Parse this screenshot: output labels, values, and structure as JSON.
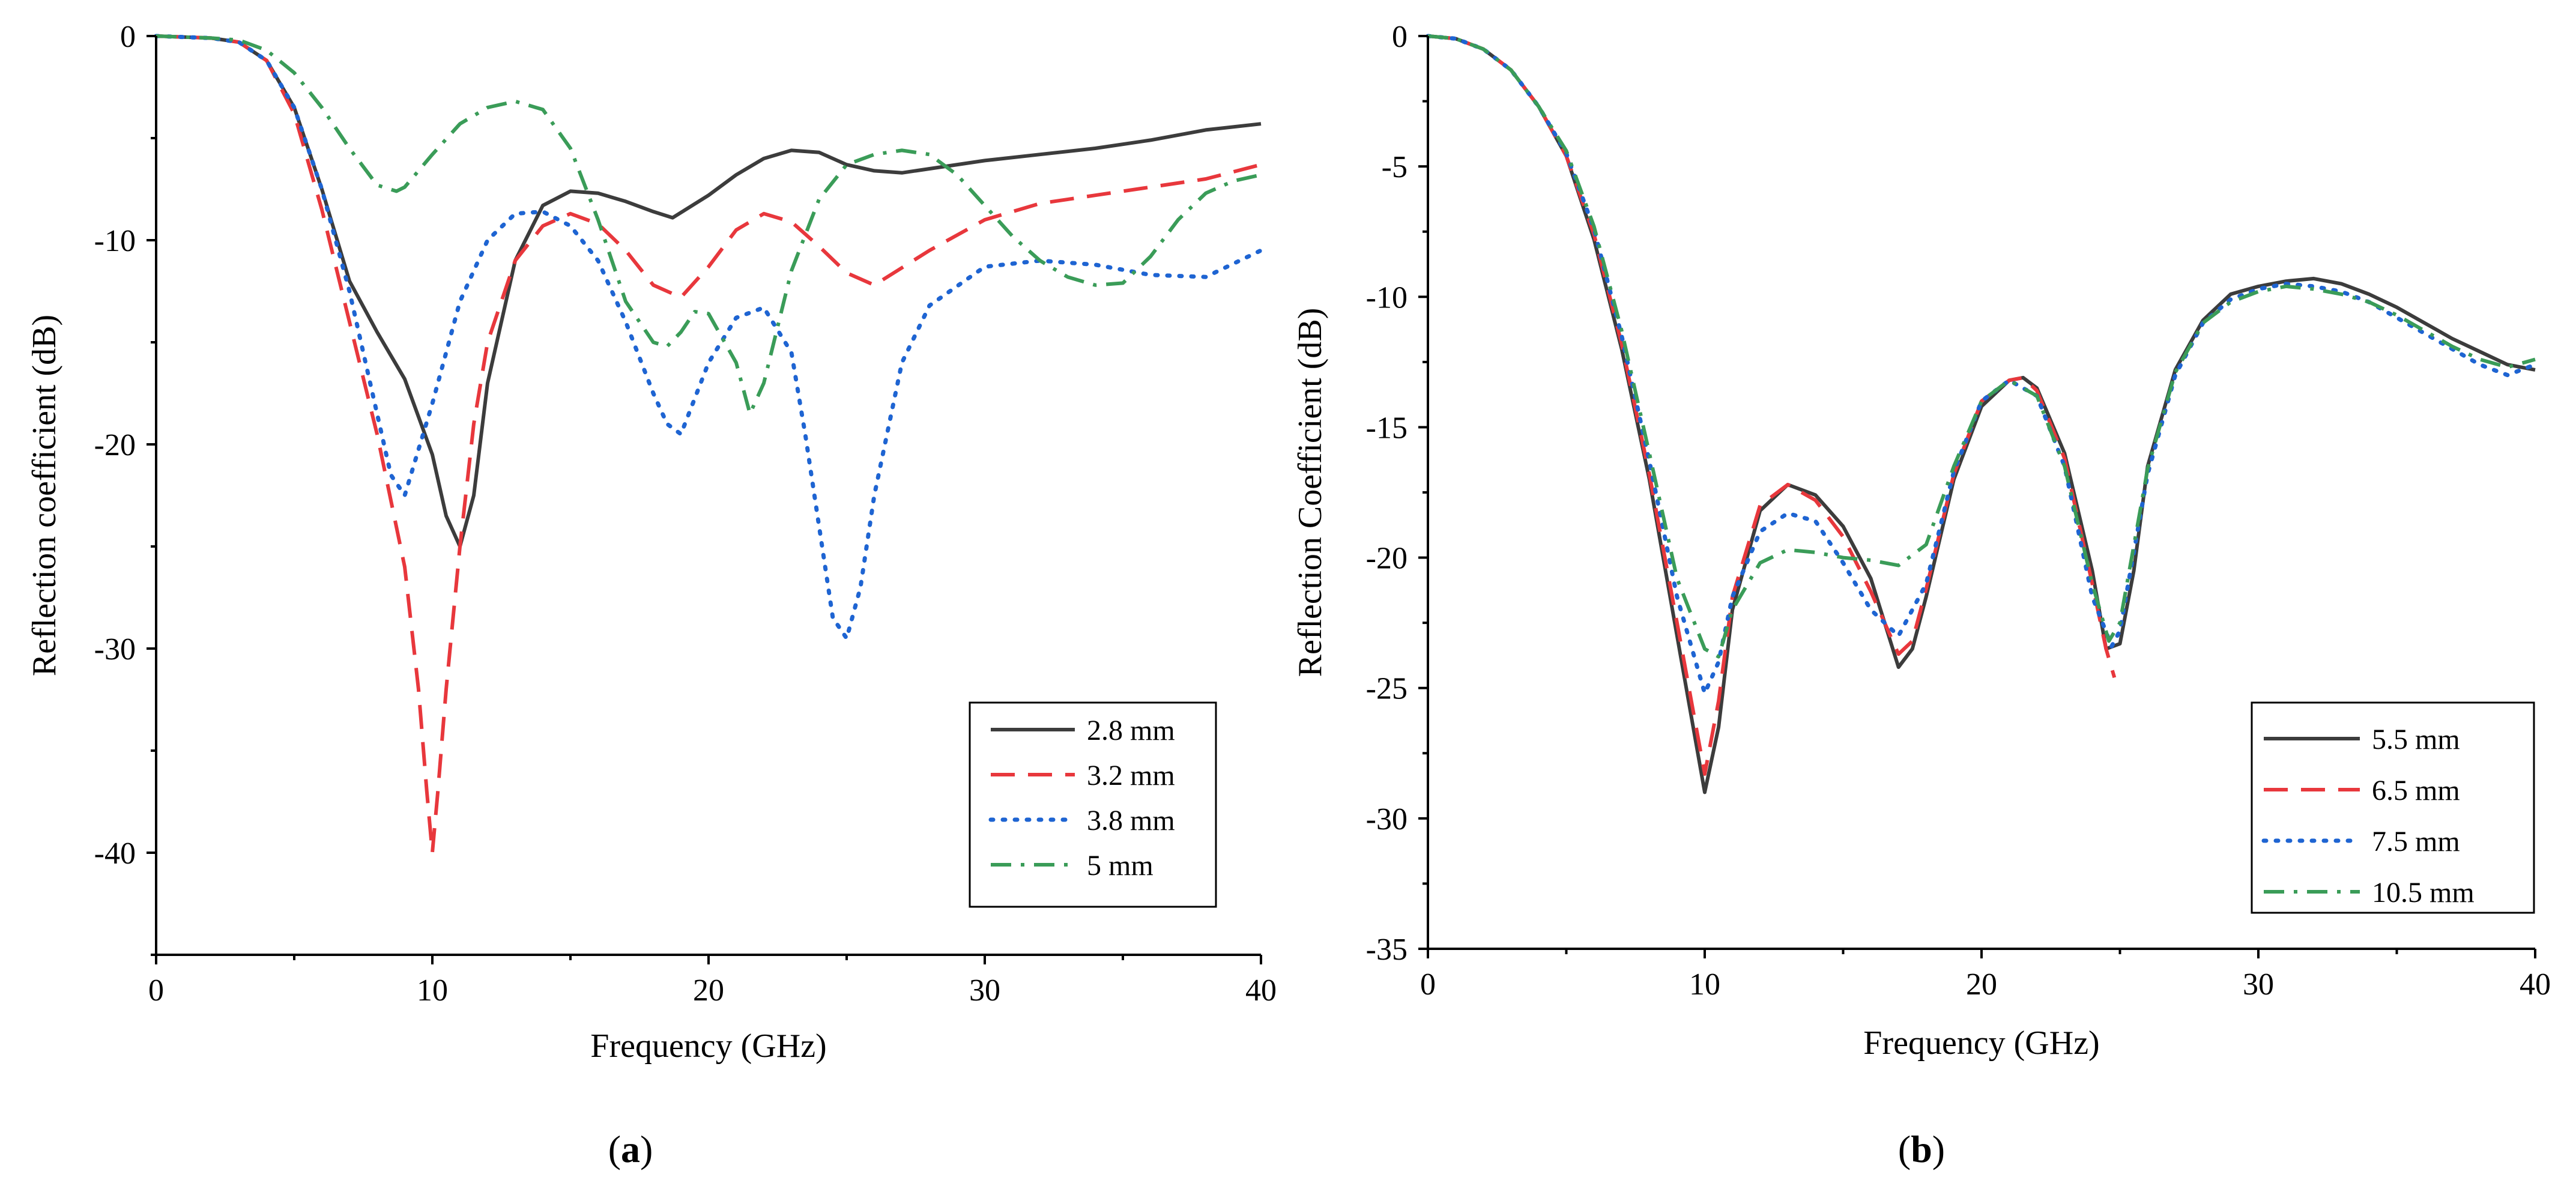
{
  "chart_data": [
    {
      "type": "line",
      "panel": "a",
      "caption_open": "(",
      "caption_letter": "a",
      "caption_close": ")",
      "xlabel": "Frequency (GHz)",
      "ylabel": "Reflection coefficient (dB)",
      "xlim": [
        0,
        40
      ],
      "ylim": [
        -45,
        0
      ],
      "xticks": [
        0,
        10,
        20,
        30,
        40
      ],
      "yticks": [
        0,
        -10,
        -20,
        -30,
        -40
      ],
      "xtick_labels": [
        "0",
        "10",
        "20",
        "30",
        "40"
      ],
      "ytick_labels": [
        "0",
        "-10",
        "-20",
        "-30",
        "-40"
      ],
      "legend_position": "bottom-right",
      "series": [
        {
          "name": "2.8 mm",
          "color": "#3c3c3c",
          "dash": "solid",
          "x": [
            0,
            2,
            3,
            4,
            5,
            6,
            7,
            8,
            9,
            10,
            10.5,
            11,
            11.5,
            12,
            13,
            14,
            15,
            16,
            17,
            18,
            18.7,
            20,
            21,
            22,
            23,
            24,
            25,
            26,
            27,
            28,
            30,
            32,
            34,
            36,
            38,
            40
          ],
          "y": [
            0,
            -0.1,
            -0.3,
            -1.2,
            -3.5,
            -7.5,
            -12,
            -14.5,
            -16.8,
            -20.5,
            -23.5,
            -25,
            -22.5,
            -17,
            -11,
            -8.3,
            -7.6,
            -7.7,
            -8.1,
            -8.6,
            -8.9,
            -7.8,
            -6.8,
            -6.0,
            -5.6,
            -5.7,
            -6.3,
            -6.6,
            -6.7,
            -6.5,
            -6.1,
            -5.8,
            -5.5,
            -5.1,
            -4.6,
            -4.3
          ]
        },
        {
          "name": "3.2 mm",
          "color": "#e8373c",
          "dash": "long-dash",
          "x": [
            0,
            2,
            3,
            4,
            5,
            6,
            7,
            8,
            9,
            9.5,
            9.8,
            10,
            10.2,
            10.5,
            11,
            11.5,
            12,
            13,
            14,
            15,
            16,
            17,
            18,
            19,
            20,
            21,
            22,
            23,
            24,
            25,
            26,
            28,
            30,
            32,
            34,
            36,
            38,
            40
          ],
          "y": [
            0,
            -0.1,
            -0.3,
            -1.2,
            -3.8,
            -8.5,
            -14,
            -19.5,
            -26,
            -32,
            -37,
            -40,
            -37,
            -32,
            -25,
            -19,
            -15,
            -11,
            -9.3,
            -8.7,
            -9.2,
            -10.5,
            -12.2,
            -12.8,
            -11.3,
            -9.5,
            -8.7,
            -9.1,
            -10.3,
            -11.6,
            -12.2,
            -10.5,
            -9.0,
            -8.2,
            -7.8,
            -7.4,
            -7.0,
            -6.3
          ]
        },
        {
          "name": "3.8 mm",
          "color": "#1e64d2",
          "dash": "dotted",
          "x": [
            0,
            2,
            3,
            4,
            5,
            6,
            7,
            8,
            8.5,
            9,
            10,
            11,
            12,
            13,
            14,
            15,
            16,
            17,
            18,
            18.5,
            19,
            20,
            21,
            22,
            23,
            23.5,
            24,
            24.5,
            25,
            25.5,
            26,
            27,
            28,
            30,
            32,
            34,
            36,
            38,
            40
          ],
          "y": [
            0,
            -0.1,
            -0.3,
            -1.2,
            -3.5,
            -7.5,
            -12.5,
            -18.5,
            -21.5,
            -22.5,
            -18,
            -13,
            -10,
            -8.7,
            -8.6,
            -9.3,
            -11,
            -14,
            -17.5,
            -19,
            -19.5,
            -16,
            -13.8,
            -13.3,
            -15.5,
            -19.5,
            -24,
            -28.5,
            -29.5,
            -27,
            -22.5,
            -16,
            -13.2,
            -11.3,
            -11.0,
            -11.2,
            -11.7,
            -11.8,
            -10.5
          ]
        },
        {
          "name": "5 mm",
          "color": "#3a9c58",
          "dash": "dash-dot",
          "x": [
            0,
            2,
            3,
            4,
            5,
            6,
            7,
            8,
            8.7,
            9,
            10,
            11,
            12,
            13,
            14,
            15,
            16,
            17,
            18,
            18.5,
            19,
            19.5,
            20,
            21,
            21.5,
            22,
            23,
            24,
            25,
            26,
            27,
            28,
            29,
            30,
            31,
            32,
            33,
            34,
            35,
            36,
            37,
            38,
            39,
            40
          ],
          "y": [
            0,
            -0.1,
            -0.2,
            -0.7,
            -1.8,
            -3.5,
            -5.5,
            -7.3,
            -7.6,
            -7.4,
            -5.8,
            -4.3,
            -3.5,
            -3.2,
            -3.6,
            -5.5,
            -9,
            -13,
            -15,
            -15.2,
            -14.5,
            -13.5,
            -13.6,
            -16,
            -18.5,
            -17,
            -11.5,
            -8,
            -6.3,
            -5.8,
            -5.6,
            -5.8,
            -6.8,
            -8.3,
            -9.8,
            -11.0,
            -11.8,
            -12.2,
            -12.1,
            -10.8,
            -9.0,
            -7.7,
            -7.1,
            -6.8
          ]
        }
      ]
    },
    {
      "type": "line",
      "panel": "b",
      "caption_open": "(",
      "caption_letter": "b",
      "caption_close": ")",
      "xlabel": "Frequency (GHz)",
      "ylabel": "Reflection Coefficient (dB)",
      "xlim": [
        0,
        40
      ],
      "ylim": [
        -35,
        0
      ],
      "xticks": [
        0,
        10,
        20,
        30,
        40
      ],
      "yticks": [
        0,
        -5,
        -10,
        -15,
        -20,
        -25,
        -30,
        -35
      ],
      "xtick_labels": [
        "0",
        "10",
        "20",
        "30",
        "40"
      ],
      "ytick_labels": [
        "0",
        "-5",
        "-10",
        "-15",
        "-20",
        "-25",
        "-30",
        "-35"
      ],
      "legend_position": "bottom-right",
      "series": [
        {
          "name": "5.5 mm",
          "color": "#3c3c3c",
          "dash": "solid",
          "x": [
            0,
            1,
            2,
            3,
            4,
            5,
            6,
            7,
            8,
            9,
            10,
            10.5,
            11,
            12,
            13,
            14,
            15,
            16,
            17,
            17.5,
            18,
            19,
            20,
            21,
            21.5,
            22,
            23,
            24,
            24.5,
            25,
            25.5,
            26,
            27,
            28,
            29,
            30,
            31,
            32,
            33,
            34,
            35,
            36,
            37,
            38,
            39,
            40
          ],
          "y": [
            0,
            -0.1,
            -0.5,
            -1.3,
            -2.7,
            -4.6,
            -7.8,
            -12,
            -17,
            -23,
            -29,
            -26.5,
            -22,
            -18.2,
            -17.2,
            -17.6,
            -18.8,
            -20.8,
            -24.2,
            -23.5,
            -21.5,
            -17,
            -14.2,
            -13.2,
            -13.1,
            -13.5,
            -16,
            -20.5,
            -23.5,
            -23.3,
            -20.5,
            -16.5,
            -12.8,
            -10.9,
            -9.9,
            -9.6,
            -9.4,
            -9.3,
            -9.5,
            -9.9,
            -10.4,
            -11.0,
            -11.6,
            -12.1,
            -12.6,
            -12.8
          ]
        },
        {
          "name": "6.5 mm",
          "color": "#e8373c",
          "dash": "long-dash",
          "x": [
            0,
            1,
            2,
            3,
            4,
            5,
            6,
            7,
            8,
            9,
            10,
            10.5,
            11,
            12,
            13,
            14,
            15,
            16,
            17,
            17.5,
            18,
            19,
            20,
            21,
            21.5,
            22,
            23,
            24,
            24.5,
            24.8
          ],
          "y": [
            0,
            -0.1,
            -0.5,
            -1.3,
            -2.7,
            -4.6,
            -7.6,
            -11.8,
            -16.8,
            -22.5,
            -28.3,
            -25.5,
            -21.5,
            -18.0,
            -17.2,
            -17.8,
            -19.2,
            -21.3,
            -23.7,
            -23.2,
            -21.2,
            -16.8,
            -14.0,
            -13.2,
            -13.1,
            -13.6,
            -16.2,
            -21,
            -23.5,
            -24.6
          ]
        },
        {
          "name": "7.5 mm",
          "color": "#1e64d2",
          "dash": "dotted",
          "x": [
            0,
            1,
            2,
            3,
            4,
            5,
            6,
            7,
            8,
            9,
            10,
            10.5,
            11,
            12,
            13,
            14,
            15,
            16,
            17,
            18,
            19,
            20,
            21,
            22,
            23,
            24,
            24.7,
            25,
            26,
            27,
            28,
            29,
            30,
            31,
            32,
            33,
            34,
            35,
            36,
            37,
            38,
            39,
            40
          ],
          "y": [
            0,
            -0.1,
            -0.5,
            -1.3,
            -2.7,
            -4.5,
            -7.4,
            -11.5,
            -16.3,
            -21.5,
            -25.2,
            -24.0,
            -21.5,
            -19,
            -18.3,
            -18.6,
            -20.2,
            -22.0,
            -23.0,
            -21.0,
            -16.7,
            -14.0,
            -13.2,
            -13.8,
            -16.5,
            -21.5,
            -23.4,
            -22.8,
            -16.8,
            -13.0,
            -11.0,
            -10.1,
            -9.7,
            -9.5,
            -9.6,
            -9.8,
            -10.2,
            -10.8,
            -11.4,
            -12.0,
            -12.6,
            -13.0,
            -12.6
          ]
        },
        {
          "name": "10.5 mm",
          "color": "#3a9c58",
          "dash": "dash-dot",
          "x": [
            0,
            1,
            2,
            3,
            4,
            5,
            6,
            7,
            8,
            9,
            10,
            10.5,
            11,
            12,
            13,
            14,
            15,
            16,
            17,
            18,
            19,
            20,
            21,
            22,
            23,
            24,
            24.6,
            25,
            26,
            27,
            28,
            29,
            30,
            31,
            32,
            33,
            34,
            35,
            36,
            37,
            38,
            39,
            40
          ],
          "y": [
            0,
            -0.1,
            -0.5,
            -1.3,
            -2.7,
            -4.4,
            -7.3,
            -11.3,
            -16.0,
            -20.8,
            -23.5,
            -23.8,
            -22.0,
            -20.2,
            -19.7,
            -19.8,
            -20.0,
            -20.1,
            -20.3,
            -19.5,
            -16.5,
            -14.0,
            -13.2,
            -13.8,
            -16.5,
            -21,
            -23.2,
            -22.5,
            -16.6,
            -12.9,
            -11.0,
            -10.2,
            -9.8,
            -9.6,
            -9.7,
            -9.9,
            -10.2,
            -10.7,
            -11.3,
            -11.9,
            -12.4,
            -12.7,
            -12.4
          ]
        }
      ]
    }
  ]
}
